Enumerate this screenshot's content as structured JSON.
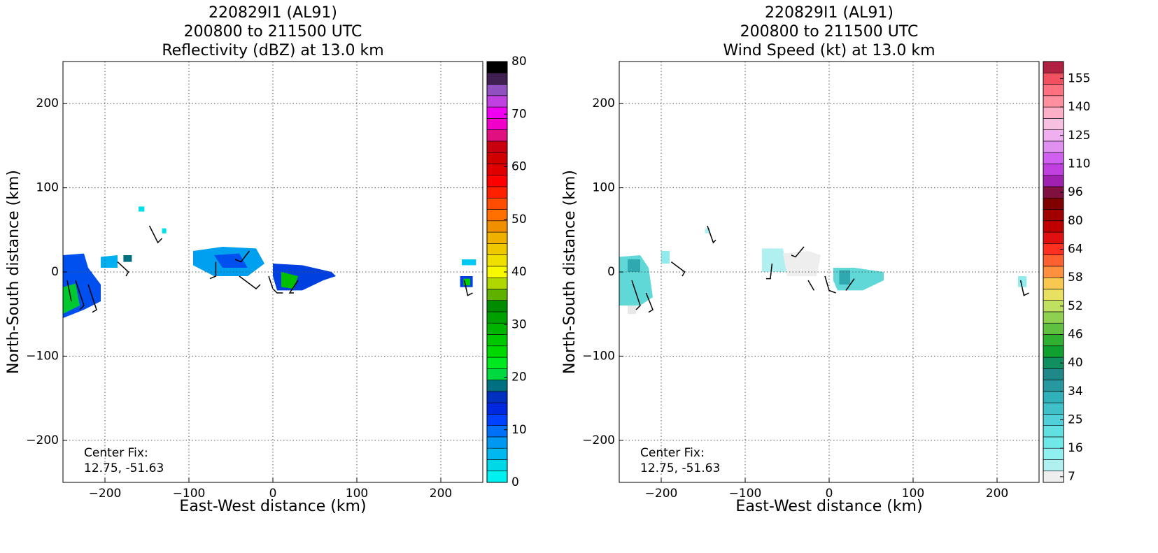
{
  "chart_data": [
    {
      "type": "radar",
      "title": [
        "220829I1 (AL91)",
        "200800 to 211500 UTC",
        "Reflectivity (dBZ) at 13.0 km"
      ],
      "xlabel": "East-West distance (km)",
      "ylabel": "North-South distance (km)",
      "xlim": [
        -250,
        250
      ],
      "ylim": [
        -250,
        250
      ],
      "xticks": [
        {
          "value": -200,
          "label": "−200"
        },
        {
          "value": -100,
          "label": "−100"
        },
        0,
        100,
        200
      ],
      "yticks": [
        {
          "value": -200,
          "label": "−200"
        },
        {
          "value": -100,
          "label": "−100"
        },
        0,
        100,
        200
      ],
      "grid": true,
      "annotation": [
        "Center Fix:",
        "12.75, -51.63"
      ],
      "cbar_lim": [
        0,
        80
      ],
      "cbar_ticks": [
        0,
        10,
        20,
        30,
        40,
        50,
        60,
        70,
        80
      ],
      "cbar_colors": [
        "#00f0f0",
        "#00d8e8",
        "#00b8f0",
        "#0098f0",
        "#0070f8",
        "#0040ff",
        "#0028e0",
        "#0030c0",
        "#007080",
        "#00d840",
        "#00e820",
        "#00d800",
        "#00c800",
        "#00b400",
        "#00a000",
        "#008c00",
        "#60b000",
        "#b0d800",
        "#f8f800",
        "#f0e000",
        "#f0c800",
        "#f0b000",
        "#f09000",
        "#ff7000",
        "#ff4c00",
        "#ff2000",
        "#ff0000",
        "#e00000",
        "#d00000",
        "#c80010",
        "#e01080",
        "#f000c8",
        "#f000f0",
        "#c040e0",
        "#9050c0",
        "#402050",
        "#000000"
      ]
    },
    {
      "type": "radar",
      "title": [
        "220829I1 (AL91)",
        "200800 to 211500 UTC",
        "Wind Speed (kt) at 13.0 km"
      ],
      "xlabel": "East-West distance (km)",
      "ylabel": "North-South distance (km)",
      "xlim": [
        -250,
        250
      ],
      "ylim": [
        -250,
        250
      ],
      "xticks": [
        {
          "value": -200,
          "label": "−200"
        },
        {
          "value": -100,
          "label": "−100"
        },
        0,
        100,
        200
      ],
      "yticks": [
        {
          "value": -200,
          "label": "−200"
        },
        {
          "value": -100,
          "label": "−100"
        },
        0,
        100,
        200
      ],
      "grid": true,
      "annotation": [
        "Center Fix:",
        "12.75, -51.63"
      ],
      "cbar_ticks": [
        7,
        16,
        25,
        34,
        40,
        46,
        52,
        58,
        64,
        80,
        96,
        110,
        125,
        140,
        155
      ],
      "cbar_colors": [
        "#eeeeee",
        "#b0f0f0",
        "#90f0f0",
        "#70e8e8",
        "#60e0e0",
        "#50d0d8",
        "#40c0c8",
        "#30b0b8",
        "#2898a0",
        "#208888",
        "#109060",
        "#10a030",
        "#30b030",
        "#60c040",
        "#90d050",
        "#c0e060",
        "#e8e060",
        "#f8c850",
        "#ff9040",
        "#ff6030",
        "#ff3020",
        "#e01010",
        "#c00000",
        "#a00000",
        "#800000",
        "#801040",
        "#a020b0",
        "#c040e0",
        "#d060f0",
        "#e090f0",
        "#f0b0f0",
        "#f8c0e0",
        "#ffb0c8",
        "#ff90a0",
        "#ff7080",
        "#f05060",
        "#b02040"
      ]
    }
  ]
}
